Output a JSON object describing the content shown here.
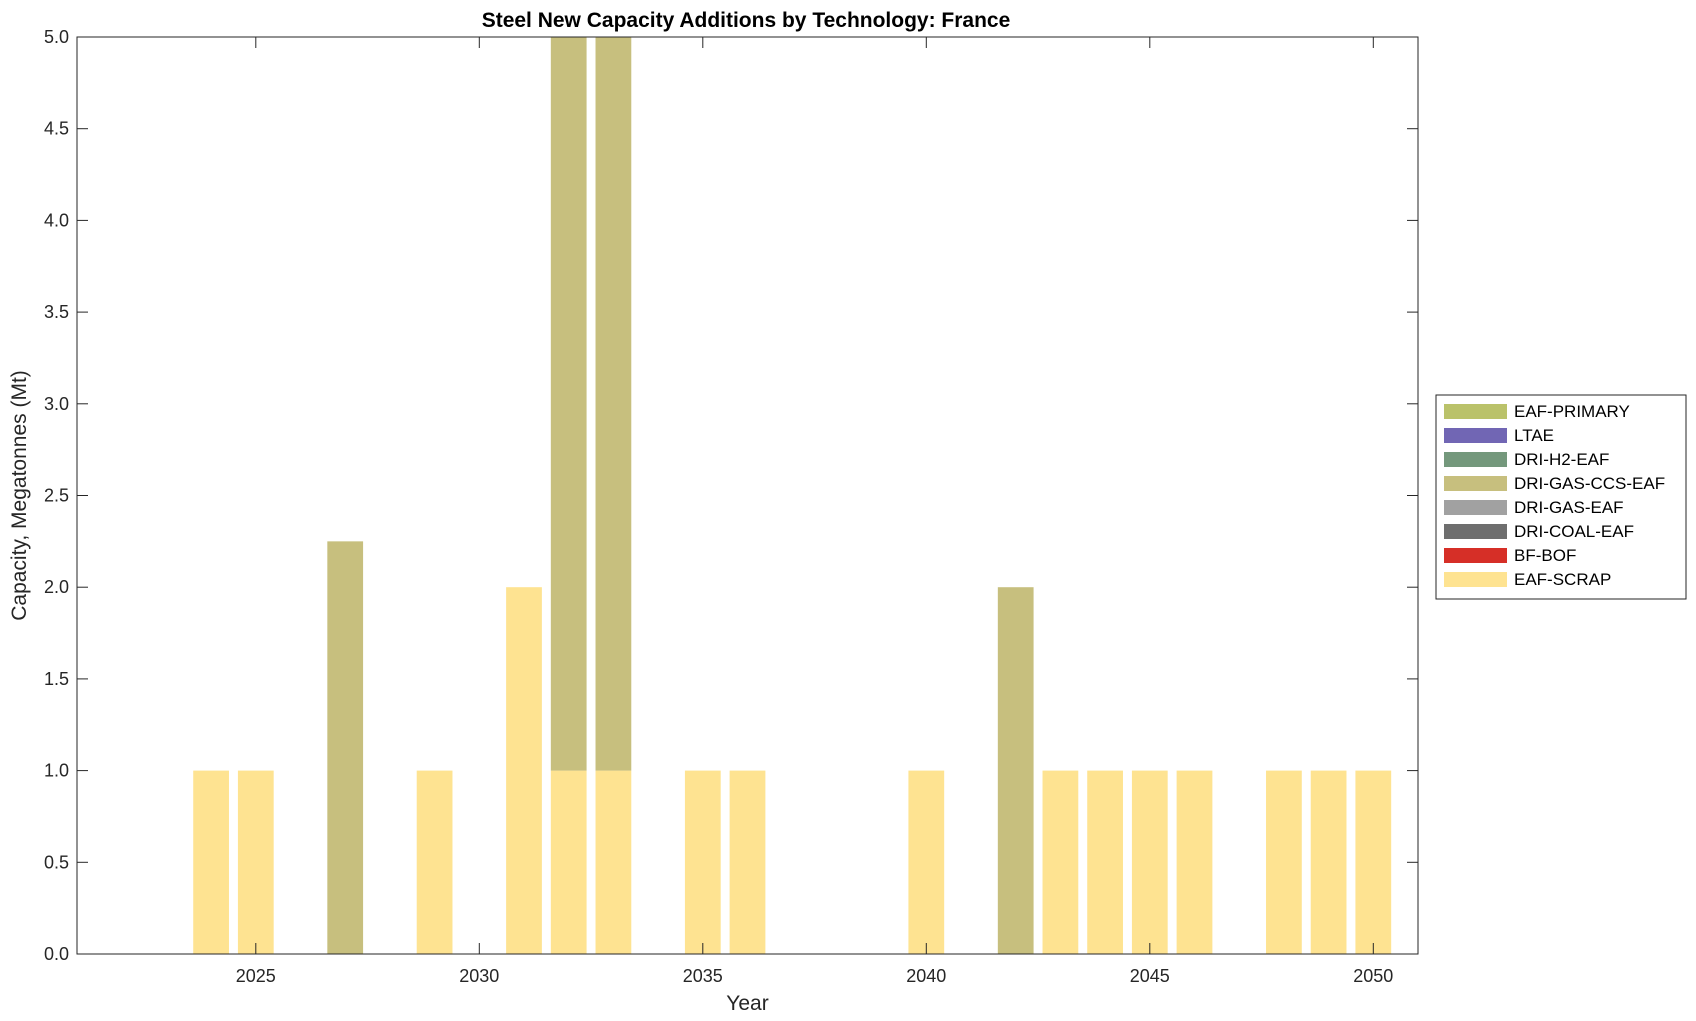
{
  "chart_data": {
    "type": "bar",
    "stacked": true,
    "title": "Steel New Capacity Additions by Technology: France",
    "xlabel": "Year",
    "ylabel": "Capacity, Megatonnes (Mt)",
    "xlim": [
      2021,
      2051
    ],
    "ylim": [
      0,
      5
    ],
    "yticks": [
      0,
      0.5,
      1,
      1.5,
      2,
      2.5,
      3,
      3.5,
      4,
      4.5,
      5
    ],
    "ytick_labels": [
      "0.0",
      "0.5",
      "1.0",
      "1.5",
      "2.0",
      "2.5",
      "3.0",
      "3.5",
      "4.0",
      "4.5",
      "5.0"
    ],
    "xticks": [
      2025,
      2030,
      2035,
      2040,
      2045,
      2050
    ],
    "xtick_labels": [
      "2025",
      "2030",
      "2035",
      "2040",
      "2045",
      "2050"
    ],
    "grid": false,
    "legend_position": "outside-right",
    "x": [
      2024,
      2025,
      2027,
      2029,
      2031,
      2032,
      2033,
      2035,
      2036,
      2040,
      2042,
      2043,
      2044,
      2045,
      2046,
      2048,
      2049,
      2050
    ],
    "series": [
      {
        "name": "EAF-SCRAP",
        "color": "#FEE391",
        "values": [
          1,
          1,
          0,
          1,
          2,
          1,
          1,
          1,
          1,
          1,
          0,
          1,
          1,
          1,
          1,
          1,
          1,
          1
        ]
      },
      {
        "name": "BF-BOF",
        "color": "#D62F27",
        "values": [
          0,
          0,
          0,
          0,
          0,
          0,
          0,
          0,
          0,
          0,
          0,
          0,
          0,
          0,
          0,
          0,
          0,
          0
        ]
      },
      {
        "name": "DRI-COAL-EAF",
        "color": "#6E6E6E",
        "values": [
          0,
          0,
          0,
          0,
          0,
          0,
          0,
          0,
          0,
          0,
          0,
          0,
          0,
          0,
          0,
          0,
          0,
          0
        ]
      },
      {
        "name": "DRI-GAS-EAF",
        "color": "#A1A1A1",
        "values": [
          0,
          0,
          0,
          0,
          0,
          0,
          0,
          0,
          0,
          0,
          0,
          0,
          0,
          0,
          0,
          0,
          0,
          0
        ]
      },
      {
        "name": "DRI-GAS-CCS-EAF",
        "color": "#C7BF7E",
        "values": [
          0,
          0,
          2.25,
          0,
          0,
          4,
          4,
          0,
          0,
          0,
          2,
          0,
          0,
          0,
          0,
          0,
          0,
          0
        ]
      },
      {
        "name": "DRI-H2-EAF",
        "color": "#74987C",
        "values": [
          0,
          0,
          0,
          0,
          0,
          0,
          0,
          0,
          0,
          0,
          0,
          0,
          0,
          0,
          0,
          0,
          0,
          0
        ]
      },
      {
        "name": "LTAE",
        "color": "#7166B4",
        "values": [
          0,
          0,
          0,
          0,
          0,
          0,
          0,
          0,
          0,
          0,
          0,
          0,
          0,
          0,
          0,
          0,
          0,
          0
        ]
      },
      {
        "name": "EAF-PRIMARY",
        "color": "#BAC26A",
        "values": [
          0,
          0,
          0,
          0,
          0,
          0,
          0,
          0,
          0,
          0,
          0,
          0,
          0,
          0,
          0,
          0,
          0,
          0
        ]
      }
    ],
    "legend_order": [
      "EAF-PRIMARY",
      "LTAE",
      "DRI-H2-EAF",
      "DRI-GAS-CCS-EAF",
      "DRI-GAS-EAF",
      "DRI-COAL-EAF",
      "BF-BOF",
      "EAF-SCRAP"
    ]
  }
}
